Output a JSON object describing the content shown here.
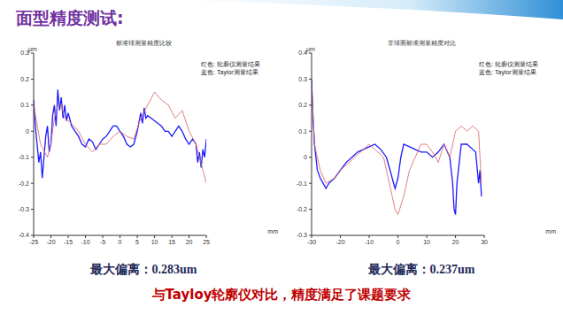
{
  "slide_title": "面型精度测试:",
  "conclusion": "与Tayloy轮廓仪对比，精度满足了课题要求",
  "chart_data": [
    {
      "type": "line",
      "title": "标准球测量精度比较",
      "x_label": "mm",
      "y_label": "μm",
      "caption": "最大偏离：0.283um",
      "xlim": [
        -25,
        25
      ],
      "xticks": [
        -25,
        -20,
        -15,
        -10,
        -5,
        0,
        5,
        10,
        15,
        20,
        25
      ],
      "ylim": [
        -0.4,
        0.3
      ],
      "yticks": [
        -0.4,
        -0.3,
        -0.2,
        -0.1,
        0,
        0.1,
        0.2,
        0.3
      ],
      "grid": false,
      "legend": "upper right",
      "series": [
        {
          "name": "蓝色: Taylor测量结果",
          "color": "#1a1aff",
          "x": [
            -25,
            -24.5,
            -24,
            -23.5,
            -23,
            -22.5,
            -22,
            -21.5,
            -21,
            -20.5,
            -20,
            -19.5,
            -19,
            -18.5,
            -18,
            -17.5,
            -17,
            -16.5,
            -16,
            -15.5,
            -15,
            -14,
            -13,
            -12,
            -11,
            -10,
            -9,
            -8,
            -7,
            -6,
            -5,
            -4,
            -3,
            -2,
            -1,
            0,
            1,
            2,
            3,
            4,
            5,
            6,
            6.5,
            7,
            7.5,
            8,
            9,
            10,
            11,
            12,
            13,
            14,
            15,
            16,
            17,
            18,
            19,
            20,
            21,
            22,
            22.5,
            23,
            23.5,
            24,
            24.5,
            25
          ],
          "values": [
            0.12,
            0.02,
            -0.05,
            -0.12,
            -0.08,
            -0.18,
            -0.1,
            -0.02,
            0.02,
            -0.08,
            -0.05,
            0.06,
            0.1,
            0.02,
            0.16,
            0.08,
            0.13,
            0.05,
            0.1,
            0.04,
            0.07,
            0.02,
            0.0,
            -0.02,
            -0.05,
            -0.06,
            -0.03,
            -0.04,
            -0.07,
            -0.05,
            -0.03,
            -0.02,
            0.0,
            0.02,
            0.02,
            0.0,
            -0.02,
            -0.05,
            -0.06,
            -0.05,
            0.0,
            0.07,
            0.03,
            0.09,
            0.05,
            0.06,
            0.05,
            0.04,
            0.03,
            0.02,
            0.0,
            0.0,
            -0.02,
            0.0,
            0.02,
            0.0,
            -0.03,
            -0.05,
            -0.03,
            -0.05,
            -0.12,
            -0.08,
            -0.14,
            -0.07,
            -0.1,
            -0.03
          ]
        },
        {
          "name": "红色: 轮廓仪测量结果",
          "color": "#e07070",
          "x": [
            -25,
            -23,
            -21,
            -20,
            -19,
            -18,
            -17,
            -16,
            -14,
            -12,
            -10,
            -8,
            -6,
            -4,
            -2,
            0,
            2,
            4,
            6,
            8,
            10,
            12,
            14,
            16,
            18,
            20,
            22,
            24,
            25
          ],
          "values": [
            0.1,
            -0.05,
            -0.1,
            -0.05,
            0.05,
            0.1,
            0.1,
            0.05,
            0.03,
            0.0,
            -0.05,
            -0.08,
            -0.05,
            -0.05,
            -0.02,
            0.0,
            -0.02,
            -0.03,
            0.05,
            0.1,
            0.15,
            0.12,
            0.1,
            0.05,
            0.08,
            0.0,
            -0.05,
            -0.15,
            -0.2
          ]
        }
      ]
    },
    {
      "type": "line",
      "title": "非球面标准测量精度对比",
      "x_label": "mm",
      "y_label": "μm",
      "caption": "最大偏离：0.237um",
      "xlim": [
        -30,
        30
      ],
      "xticks": [
        -30,
        -20,
        -10,
        0,
        10,
        20,
        30
      ],
      "ylim": [
        -0.3,
        0.4
      ],
      "yticks": [
        -0.3,
        -0.2,
        -0.1,
        0,
        0.1,
        0.2,
        0.3,
        0.4
      ],
      "grid": false,
      "legend": "upper right",
      "series": [
        {
          "name": "蓝色: Taylor测量结果",
          "color": "#1a1aff",
          "x": [
            -30,
            -29.5,
            -29,
            -28,
            -27,
            -26,
            -25,
            -24,
            -22,
            -20,
            -18,
            -16,
            -14,
            -12,
            -10,
            -8,
            -6,
            -4,
            -2,
            -1,
            0,
            1,
            2,
            4,
            6,
            8,
            10,
            12,
            14,
            16,
            18,
            19,
            19.5,
            20,
            20.5,
            21,
            22,
            24,
            26,
            27,
            28,
            28.5,
            29
          ],
          "values": [
            0.3,
            0.15,
            0.05,
            -0.05,
            -0.08,
            -0.1,
            -0.12,
            -0.1,
            -0.08,
            -0.05,
            -0.02,
            0.0,
            0.02,
            0.03,
            0.04,
            0.05,
            0.03,
            0.0,
            -0.08,
            -0.12,
            -0.08,
            0.0,
            0.05,
            0.04,
            0.03,
            0.02,
            0.02,
            0.0,
            0.02,
            0.05,
            0.0,
            -0.1,
            -0.2,
            -0.22,
            -0.1,
            -0.05,
            0.05,
            0.05,
            0.03,
            0.02,
            -0.1,
            -0.05,
            -0.15
          ]
        },
        {
          "name": "红色: 轮廓仪测量结果",
          "color": "#e07070",
          "x": [
            -30,
            -29,
            -27,
            -25,
            -22,
            -20,
            -15,
            -10,
            -5,
            -3,
            -1,
            0,
            2,
            4,
            6,
            8,
            10,
            12,
            14,
            16,
            18,
            20,
            22,
            24,
            26,
            28,
            29
          ],
          "values": [
            0.28,
            0.05,
            -0.05,
            -0.1,
            -0.08,
            -0.05,
            0.0,
            0.05,
            0.0,
            -0.1,
            -0.2,
            -0.22,
            -0.15,
            -0.05,
            0.0,
            0.05,
            0.05,
            0.02,
            -0.02,
            0.05,
            0.0,
            0.1,
            0.12,
            0.1,
            0.12,
            0.1,
            -0.1
          ]
        }
      ]
    }
  ]
}
